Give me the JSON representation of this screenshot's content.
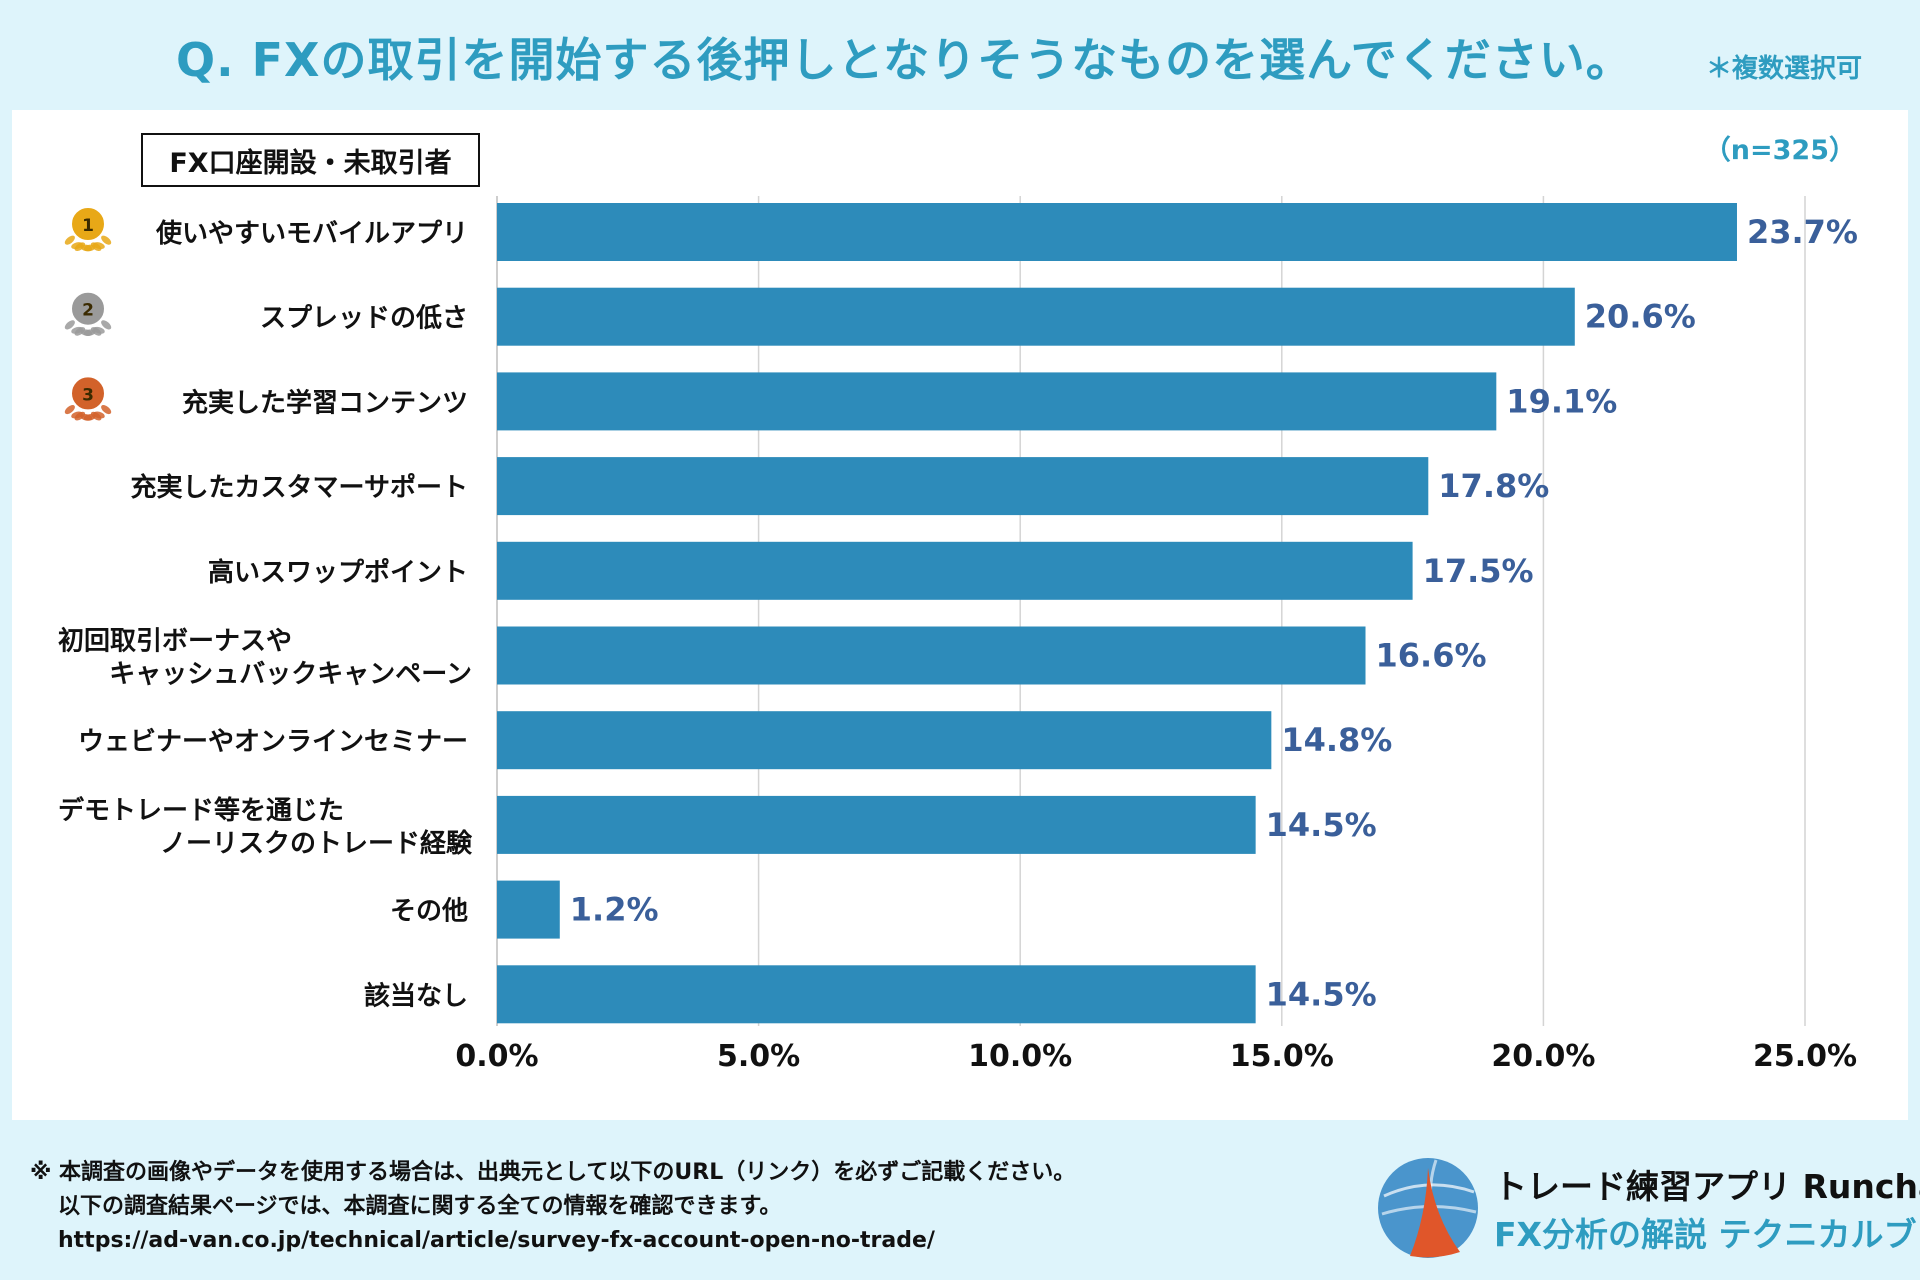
{
  "header": {
    "title": "Q. FXの取引を開始する後押しとなりそうなものを選んでください。",
    "note": "＊複数選択可"
  },
  "legend": {
    "label": "FX口座開設・未取引者"
  },
  "sample": {
    "label": "（n=325）"
  },
  "colors": {
    "bar": "#2d8bba",
    "value_text": "#3a5f9a",
    "accent": "#2e9cc0",
    "gold": "#e8a817",
    "silver": "#9a9a9a",
    "bronze": "#d2622a"
  },
  "chart_data": {
    "type": "bar",
    "orientation": "horizontal",
    "categories": [
      [
        "使いやすいモバイルアプリ"
      ],
      [
        "スプレッドの低さ"
      ],
      [
        "充実した学習コンテンツ"
      ],
      [
        "充実したカスタマーサポート"
      ],
      [
        "高いスワップポイント"
      ],
      [
        "初回取引ボーナスや",
        "キャッシュバックキャンペーン"
      ],
      [
        "ウェビナーやオンラインセミナー"
      ],
      [
        "デモトレード等を通じた",
        "ノーリスクのトレード経験"
      ],
      [
        "その他"
      ],
      [
        "該当なし"
      ]
    ],
    "values": [
      23.7,
      20.6,
      19.1,
      17.8,
      17.5,
      16.6,
      14.8,
      14.5,
      1.2,
      14.5
    ],
    "value_labels": [
      "23.7%",
      "20.6%",
      "19.1%",
      "17.8%",
      "17.5%",
      "16.6%",
      "14.8%",
      "14.5%",
      "1.2%",
      "14.5%"
    ],
    "rank_badges": [
      "1",
      "2",
      "3"
    ],
    "xlim": [
      0,
      25
    ],
    "x_ticks": [
      0,
      5,
      10,
      15,
      20,
      25
    ],
    "x_tick_labels": [
      "0.0%",
      "5.0%",
      "10.0%",
      "15.0%",
      "20.0%",
      "25.0%"
    ],
    "grid": true,
    "title": "Q. FXの取引を開始する後押しとなりそうなものを選んでください。",
    "legend": "FX口座開設・未取引者"
  },
  "footer": {
    "line1": "※ 本調査の画像やデータを使用する場合は、出典元として以下のURL（リンク）を必ずご記載ください。",
    "line2": "以下の調査結果ページでは、本調査に関する全ての情報を確認できます。",
    "line3": "https://ad-van.co.jp/technical/article/survey-fx-account-open-no-trade/"
  },
  "brand": {
    "name": "トレード練習アプリ  Runcha",
    "sub": "FX分析の解説  テクニカルブック"
  }
}
